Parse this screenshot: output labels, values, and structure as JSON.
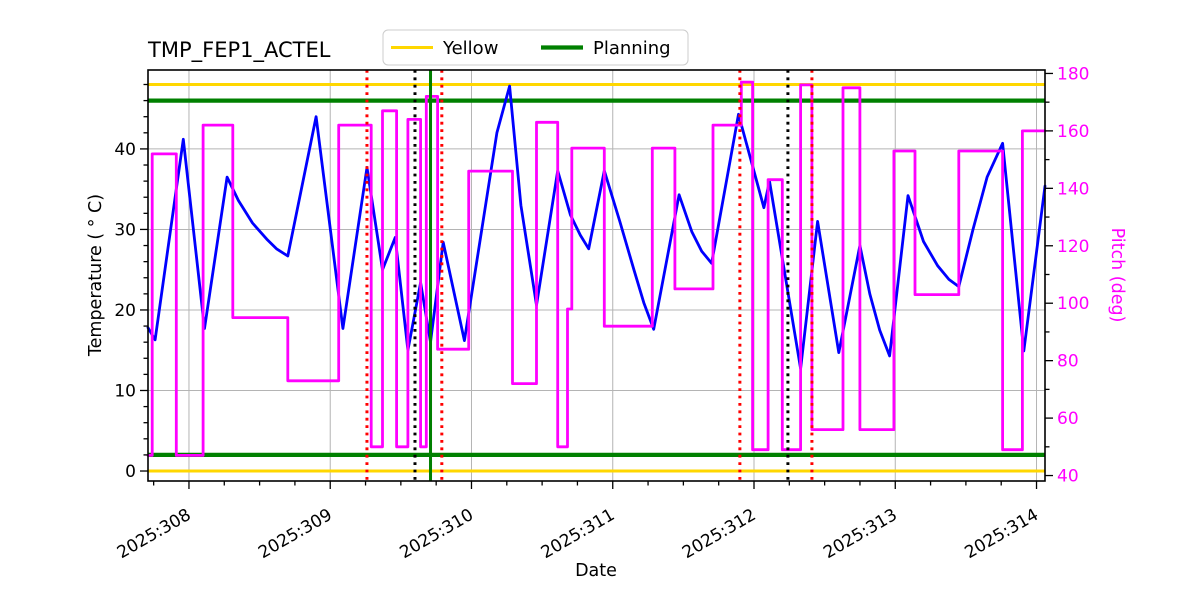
{
  "chart_data": {
    "type": "line",
    "title": "TMP_FEP1_ACTEL",
    "xlabel": "Date",
    "ylabel_left": "Temperature ( ° C)",
    "ylabel_right": "Pitch (deg)",
    "xlim": [
      307.71,
      314.06
    ],
    "ylim_left": [
      -1.24,
      49.8
    ],
    "ylim_right": [
      38.1,
      181.2
    ],
    "grid": true,
    "legend_position": "top-center",
    "legend": [
      {
        "label": "Yellow",
        "color": "#ffd700",
        "lw": 3
      },
      {
        "label": "Planning",
        "color": "#008000",
        "lw": 4.2
      }
    ],
    "x_major_ticks": [
      308,
      309,
      310,
      311,
      312,
      313,
      314
    ],
    "x_tick_labels": [
      "2025:308",
      "2025:309",
      "2025:310",
      "2025:311",
      "2025:312",
      "2025:313",
      "2025:314"
    ],
    "x_minor_step": 0.25,
    "y_left_ticks": [
      0,
      10,
      20,
      30,
      40
    ],
    "y_left_minor_step": 2,
    "y_right_ticks": [
      40,
      60,
      80,
      100,
      120,
      140,
      160,
      180
    ],
    "y_right_minor_step": 10,
    "limit_lines": [
      {
        "name": "yellow-high",
        "y": 48,
        "color": "#ffd700",
        "lw": 3
      },
      {
        "name": "yellow-low",
        "y": 0,
        "color": "#ffd700",
        "lw": 3
      },
      {
        "name": "planning-high",
        "y": 46,
        "color": "#008000",
        "lw": 4.2
      },
      {
        "name": "planning-low",
        "y": 2,
        "color": "#008000",
        "lw": 4.2
      }
    ],
    "event_lines": [
      {
        "x": 309.26,
        "color": "#ff0000",
        "style": "dotted",
        "lw": 3
      },
      {
        "x": 309.6,
        "color": "#000000",
        "style": "dotted",
        "lw": 3
      },
      {
        "x": 309.71,
        "color": "#008000",
        "style": "solid",
        "lw": 3
      },
      {
        "x": 309.79,
        "color": "#ff0000",
        "style": "dotted",
        "lw": 3
      },
      {
        "x": 311.9,
        "color": "#ff0000",
        "style": "dotted",
        "lw": 3
      },
      {
        "x": 312.24,
        "color": "#000000",
        "style": "dotted",
        "lw": 3
      },
      {
        "x": 312.41,
        "color": "#ff0000",
        "style": "dotted",
        "lw": 3
      }
    ],
    "series": [
      {
        "name": "temperature",
        "axis": "left",
        "color": "#0000ff",
        "lw": 2.8,
        "step": false,
        "points": [
          [
            307.71,
            17.8
          ],
          [
            307.76,
            16.3
          ],
          [
            307.96,
            41.2
          ],
          [
            308.11,
            17.7
          ],
          [
            308.27,
            36.5
          ],
          [
            308.35,
            33.6
          ],
          [
            308.45,
            30.8
          ],
          [
            308.55,
            28.8
          ],
          [
            308.62,
            27.6
          ],
          [
            308.7,
            26.7
          ],
          [
            308.9,
            44.0
          ],
          [
            309.09,
            17.7
          ],
          [
            309.26,
            37.7
          ],
          [
            309.37,
            25.0
          ],
          [
            309.46,
            29.0
          ],
          [
            309.55,
            15.0
          ],
          [
            309.64,
            23.4
          ],
          [
            309.71,
            16.0
          ],
          [
            309.8,
            28.4
          ],
          [
            309.95,
            16.2
          ],
          [
            310.18,
            42.0
          ],
          [
            310.27,
            47.8
          ],
          [
            310.35,
            33.0
          ],
          [
            310.46,
            20.6
          ],
          [
            310.61,
            37.3
          ],
          [
            310.7,
            31.8
          ],
          [
            310.77,
            29.3
          ],
          [
            310.83,
            27.6
          ],
          [
            310.94,
            37.3
          ],
          [
            311.05,
            31.0
          ],
          [
            311.15,
            25.0
          ],
          [
            311.22,
            20.9
          ],
          [
            311.29,
            17.6
          ],
          [
            311.47,
            34.3
          ],
          [
            311.56,
            29.7
          ],
          [
            311.63,
            27.3
          ],
          [
            311.7,
            25.8
          ],
          [
            311.89,
            44.3
          ],
          [
            312.07,
            32.7
          ],
          [
            312.11,
            36.0
          ],
          [
            312.33,
            12.7
          ],
          [
            312.45,
            31.0
          ],
          [
            312.6,
            14.7
          ],
          [
            312.75,
            28.0
          ],
          [
            312.82,
            22.0
          ],
          [
            312.89,
            17.5
          ],
          [
            312.96,
            14.3
          ],
          [
            313.09,
            34.2
          ],
          [
            313.2,
            28.5
          ],
          [
            313.3,
            25.5
          ],
          [
            313.38,
            23.8
          ],
          [
            313.45,
            22.9
          ],
          [
            313.55,
            30.0
          ],
          [
            313.65,
            36.5
          ],
          [
            313.76,
            40.7
          ],
          [
            313.91,
            14.9
          ],
          [
            314.06,
            35.4
          ]
        ]
      },
      {
        "name": "pitch",
        "axis": "right",
        "color": "#ff00ff",
        "lw": 2.8,
        "step": true,
        "points": [
          [
            307.71,
            47
          ],
          [
            307.74,
            152
          ],
          [
            307.91,
            47
          ],
          [
            308.1,
            162
          ],
          [
            308.31,
            95
          ],
          [
            308.7,
            73
          ],
          [
            309.06,
            162
          ],
          [
            309.29,
            50
          ],
          [
            309.37,
            167
          ],
          [
            309.47,
            50
          ],
          [
            309.55,
            164
          ],
          [
            309.64,
            50
          ],
          [
            309.68,
            172
          ],
          [
            309.76,
            84
          ],
          [
            309.98,
            146
          ],
          [
            310.29,
            72
          ],
          [
            310.46,
            163
          ],
          [
            310.61,
            50
          ],
          [
            310.68,
            98
          ],
          [
            310.71,
            154
          ],
          [
            310.94,
            92
          ],
          [
            311.28,
            154
          ],
          [
            311.44,
            105
          ],
          [
            311.71,
            162
          ],
          [
            311.91,
            177
          ],
          [
            311.99,
            49
          ],
          [
            312.1,
            143
          ],
          [
            312.2,
            49
          ],
          [
            312.33,
            176
          ],
          [
            312.41,
            56
          ],
          [
            312.63,
            175
          ],
          [
            312.75,
            56
          ],
          [
            312.99,
            153
          ],
          [
            313.14,
            103
          ],
          [
            313.45,
            153
          ],
          [
            313.76,
            49
          ],
          [
            313.9,
            160
          ],
          [
            314.06,
            160
          ]
        ]
      }
    ],
    "colors": {
      "grid": "#b4b4b4",
      "spine": "#000000",
      "right_tick_label": "#ff00ff",
      "legend_border": "#cccccc",
      "background": "#ffffff"
    }
  }
}
